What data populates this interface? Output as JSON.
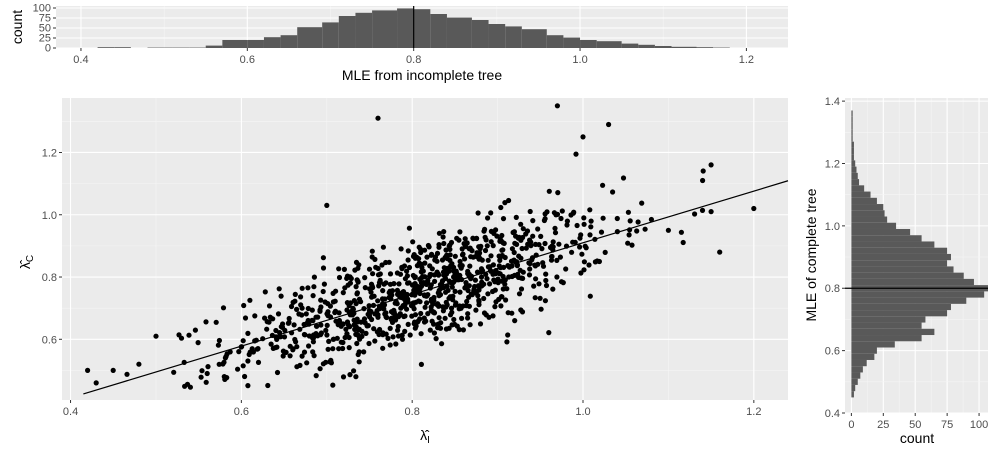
{
  "colors": {
    "panel": "#ebebeb",
    "bar": "#595959",
    "point": "#000000"
  },
  "chart_data": [
    {
      "id": "top",
      "type": "bar",
      "xlabel": "MLE from incomplete tree",
      "ylabel": "count",
      "xlim": [
        0.37,
        1.25
      ],
      "ylim": [
        0,
        105
      ],
      "xticks": [
        0.4,
        0.6,
        0.8,
        1.0,
        1.2
      ],
      "xtick_labels": [
        "0.4",
        "0.6",
        "0.8",
        "1.0",
        "1.2"
      ],
      "yticks": [
        0,
        25,
        50,
        75,
        100
      ],
      "ytick_labels": [
        "0",
        "25",
        "50",
        "75",
        "100"
      ],
      "reference_line": {
        "x": 0.8
      },
      "bins": [
        [
          0.42,
          0.44
        ],
        [
          0.44,
          0.46
        ],
        [
          0.46,
          0.48
        ],
        [
          0.48,
          0.51
        ],
        [
          0.51,
          0.53
        ],
        [
          0.53,
          0.55
        ],
        [
          0.55,
          0.57
        ],
        [
          0.57,
          0.6
        ],
        [
          0.6,
          0.62
        ],
        [
          0.62,
          0.64
        ],
        [
          0.64,
          0.66
        ],
        [
          0.66,
          0.69
        ],
        [
          0.69,
          0.71
        ],
        [
          0.71,
          0.73
        ],
        [
          0.73,
          0.75
        ],
        [
          0.75,
          0.78
        ],
        [
          0.78,
          0.8
        ],
        [
          0.8,
          0.82
        ],
        [
          0.82,
          0.84
        ],
        [
          0.84,
          0.87
        ],
        [
          0.87,
          0.89
        ],
        [
          0.89,
          0.91
        ],
        [
          0.91,
          0.93
        ],
        [
          0.93,
          0.96
        ],
        [
          0.96,
          0.98
        ],
        [
          0.98,
          1.0
        ],
        [
          1.0,
          1.02
        ],
        [
          1.02,
          1.05
        ],
        [
          1.05,
          1.07
        ],
        [
          1.07,
          1.09
        ],
        [
          1.09,
          1.11
        ],
        [
          1.11,
          1.14
        ],
        [
          1.14,
          1.16
        ],
        [
          1.16,
          1.18
        ]
      ],
      "values": [
        2,
        2,
        0,
        1,
        1,
        1,
        6,
        20,
        20,
        27,
        32,
        52,
        64,
        80,
        88,
        94,
        99,
        97,
        85,
        76,
        70,
        60,
        54,
        47,
        32,
        26,
        20,
        17,
        11,
        8,
        5,
        3,
        2,
        1
      ]
    },
    {
      "id": "scatter",
      "type": "scatter",
      "xlabel": "λ̂I",
      "ylabel": "λ̂C",
      "xlim": [
        0.39,
        1.24
      ],
      "ylim": [
        0.405,
        1.375
      ],
      "xticks": [
        0.4,
        0.6,
        0.8,
        1.0,
        1.2
      ],
      "xtick_labels": [
        "0.4",
        "0.6",
        "0.8",
        "1.0",
        "1.2"
      ],
      "yticks": [
        0.6,
        0.8,
        1.0,
        1.2
      ],
      "ytick_labels": [
        "0.6",
        "0.8",
        "1.0",
        "1.2"
      ],
      "fit_line": {
        "slope": 0.83,
        "intercept": 0.08
      },
      "n_points": 1000,
      "points_sample": [
        [
          0.43,
          0.46
        ],
        [
          0.42,
          0.5
        ],
        [
          0.45,
          0.5
        ],
        [
          0.48,
          0.52
        ],
        [
          0.5,
          0.61
        ],
        [
          0.56,
          0.49
        ],
        [
          0.58,
          0.48
        ],
        [
          0.7,
          1.03
        ],
        [
          0.76,
          1.31
        ],
        [
          0.86,
          0.63
        ],
        [
          0.92,
          0.66
        ],
        [
          0.97,
          1.35
        ],
        [
          1.0,
          1.25
        ],
        [
          1.03,
          1.29
        ],
        [
          1.1,
          0.95
        ],
        [
          1.14,
          1.11
        ],
        [
          1.15,
          1.01
        ],
        [
          1.16,
          0.88
        ],
        [
          1.15,
          1.16
        ],
        [
          1.2,
          1.02
        ]
      ]
    },
    {
      "id": "right",
      "type": "bar",
      "orientation": "horizontal",
      "xlabel": "count",
      "ylabel": "MLE of complete tree",
      "xlim": [
        -5,
        107
      ],
      "ylim": [
        0.4,
        1.41
      ],
      "xticks": [
        0,
        25,
        50,
        75,
        100
      ],
      "xtick_labels": [
        "0",
        "25",
        "50",
        "75",
        "100"
      ],
      "yticks": [
        0.4,
        0.6,
        0.8,
        1.0,
        1.2,
        1.4
      ],
      "ytick_labels": [
        "0.4",
        "0.6",
        "0.8",
        "1.0",
        "1.2",
        "1.4"
      ],
      "reference_line": {
        "y": 0.8
      },
      "bins": [
        [
          0.45,
          0.47
        ],
        [
          0.47,
          0.49
        ],
        [
          0.49,
          0.51
        ],
        [
          0.51,
          0.53
        ],
        [
          0.53,
          0.55
        ],
        [
          0.55,
          0.57
        ],
        [
          0.57,
          0.59
        ],
        [
          0.59,
          0.61
        ],
        [
          0.61,
          0.63
        ],
        [
          0.63,
          0.65
        ],
        [
          0.65,
          0.67
        ],
        [
          0.67,
          0.69
        ],
        [
          0.69,
          0.71
        ],
        [
          0.71,
          0.73
        ],
        [
          0.73,
          0.75
        ],
        [
          0.75,
          0.77
        ],
        [
          0.77,
          0.79
        ],
        [
          0.79,
          0.81
        ],
        [
          0.81,
          0.83
        ],
        [
          0.83,
          0.85
        ],
        [
          0.85,
          0.87
        ],
        [
          0.87,
          0.89
        ],
        [
          0.89,
          0.91
        ],
        [
          0.91,
          0.93
        ],
        [
          0.93,
          0.95
        ],
        [
          0.95,
          0.97
        ],
        [
          0.97,
          0.99
        ],
        [
          0.99,
          1.01
        ],
        [
          1.01,
          1.03
        ],
        [
          1.03,
          1.05
        ],
        [
          1.05,
          1.07
        ],
        [
          1.07,
          1.09
        ],
        [
          1.09,
          1.11
        ],
        [
          1.11,
          1.13
        ],
        [
          1.13,
          1.15
        ],
        [
          1.15,
          1.17
        ],
        [
          1.17,
          1.19
        ],
        [
          1.19,
          1.21
        ],
        [
          1.21,
          1.23
        ],
        [
          1.23,
          1.25
        ],
        [
          1.25,
          1.27
        ],
        [
          1.27,
          1.29
        ],
        [
          1.29,
          1.31
        ],
        [
          1.31,
          1.33
        ],
        [
          1.33,
          1.35
        ],
        [
          1.35,
          1.37
        ]
      ],
      "values": [
        2,
        3,
        5,
        7,
        9,
        12,
        18,
        20,
        34,
        55,
        65,
        55,
        58,
        75,
        78,
        90,
        104,
        107,
        96,
        88,
        80,
        75,
        78,
        75,
        65,
        55,
        46,
        35,
        28,
        26,
        25,
        20,
        15,
        10,
        6,
        5,
        4,
        3,
        2,
        2,
        2,
        1,
        1,
        1,
        1,
        1
      ]
    }
  ]
}
